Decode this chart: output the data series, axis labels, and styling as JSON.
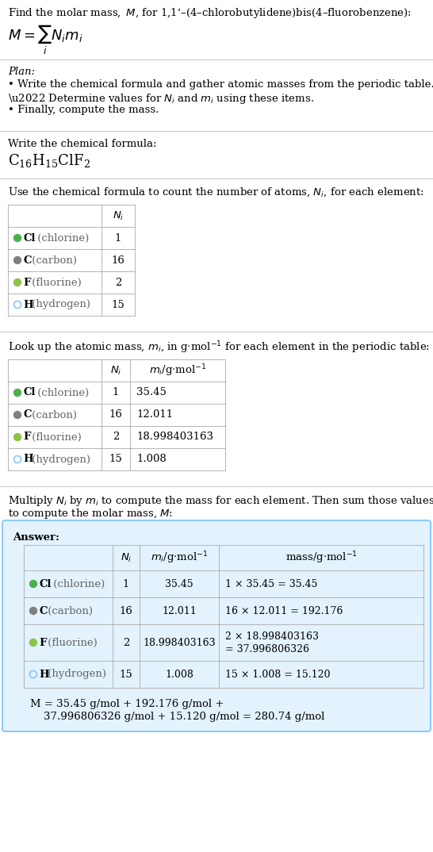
{
  "title_line1": "Find the molar mass, M, for 1,1’–(4–chlorobutylidene)bis(4–fluorobenzene):",
  "plan_header": "Plan:",
  "plan_bullets": [
    "• Write the chemical formula and gather atomic masses from the periodic table.",
    "• Determine values for N_i and m_i using these items.",
    "• Finally, compute the mass."
  ],
  "formula_header": "Write the chemical formula:",
  "count_header": "Use the chemical formula to count the number of atoms, N_i, for each element:",
  "lookup_header": "Look up the atomic mass, m_i, in g·mol⁻¹ for each element in the periodic table:",
  "multiply_header_l1": "Multiply N_i by m_i to compute the mass for each element. Then sum those values",
  "multiply_header_l2": "to compute the molar mass, M:",
  "elements": [
    "Cl (chlorine)",
    "C (carbon)",
    "F (fluorine)",
    "H (hydrogen)"
  ],
  "dot_colors": [
    "#4caf50",
    "#808080",
    "#8bc34a",
    "none"
  ],
  "dot_filled": [
    true,
    true,
    true,
    false
  ],
  "dot_border_colors": [
    "#4caf50",
    "#808080",
    "#8bc34a",
    "#90caf9"
  ],
  "Ni_values": [
    "1",
    "16",
    "2",
    "15"
  ],
  "mi_values": [
    "35.45",
    "12.011",
    "18.998403163",
    "1.008"
  ],
  "mass_expr_line1": [
    "1 × 35.45 = 35.45",
    "16 × 12.011 = 192.176",
    "2 × 18.998403163",
    "15 × 1.008 = 15.120"
  ],
  "mass_expr_line2": [
    "",
    "",
    "= 37.996806326",
    ""
  ],
  "answer_box_color": "#e3f2fd",
  "answer_box_border": "#90caf9",
  "final_line1": "M = 35.45 g/mol + 192.176 g/mol +",
  "final_line2": "    37.996806326 g/mol + 15.120 g/mol = 280.74 g/mol",
  "answer_label": "Answer:",
  "bg_color": "#ffffff",
  "text_color": "#000000",
  "sep_color": "#cccccc",
  "table_color": "#aaaaaa"
}
